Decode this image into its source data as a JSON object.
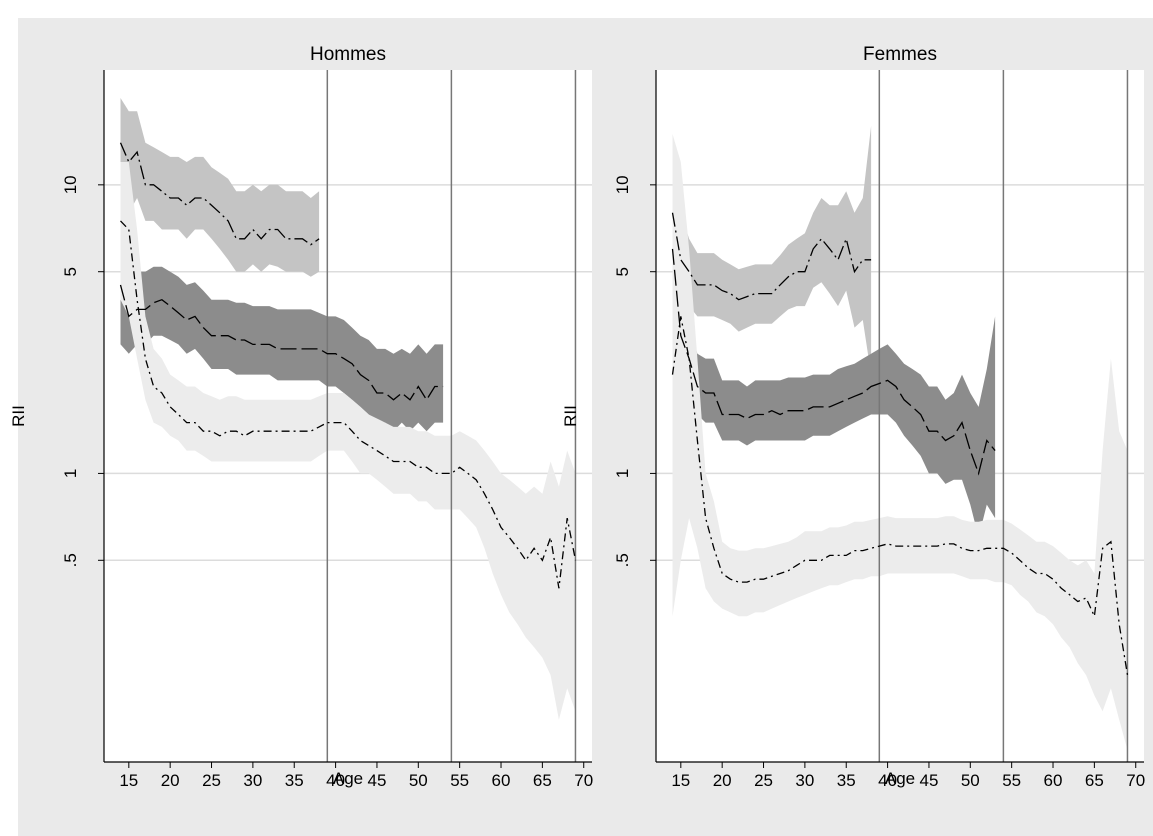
{
  "chart_data": [
    {
      "type": "line",
      "title": "Hommes",
      "xlabel": "Age",
      "ylabel": "RII",
      "xlim": [
        12,
        71
      ],
      "ylim": [
        0.1,
        25
      ],
      "log_y": true,
      "x_ticks": [
        15,
        20,
        25,
        30,
        35,
        40,
        45,
        50,
        55,
        60,
        65,
        70
      ],
      "x_tick_labels": [
        "15",
        "20",
        "25",
        "30",
        "35",
        "40",
        "45",
        "50",
        "55",
        "60",
        "65",
        "70"
      ],
      "y_ticks": [
        10,
        5,
        1,
        0.5
      ],
      "y_tick_labels": [
        "10",
        "5",
        "1",
        ".5"
      ],
      "grid": true,
      "vlines": [
        39,
        54,
        69
      ],
      "series": [
        {
          "band_color": "#c4c4c4",
          "line_style": "long-dash-dot",
          "x": [
            14,
            15,
            16,
            17,
            18,
            19,
            20,
            21,
            22,
            23,
            24,
            25,
            26,
            27,
            28,
            29,
            30,
            31,
            32,
            33,
            34,
            35,
            36,
            37,
            38
          ],
          "values": [
            14,
            12,
            13,
            10,
            10,
            9.5,
            9,
            9,
            8.5,
            9,
            9,
            8.5,
            8,
            7.5,
            6.5,
            6.5,
            7,
            6.5,
            7,
            7,
            6.5,
            6.5,
            6.5,
            6.2,
            6.5
          ],
          "lower": [
            10,
            8,
            9,
            7.5,
            7.5,
            7,
            7,
            7,
            6.5,
            7,
            7,
            6.5,
            6,
            5.5,
            5,
            5,
            5.3,
            5,
            5.3,
            5.2,
            5,
            5,
            5,
            4.8,
            5
          ],
          "upper": [
            20,
            18,
            18,
            14,
            13.5,
            13,
            12.5,
            12.5,
            12,
            12.5,
            12.5,
            11.5,
            11,
            10.5,
            9.5,
            9.5,
            10,
            9.5,
            10,
            10,
            9.5,
            9.5,
            9.5,
            9,
            9.5
          ]
        },
        {
          "band_color": "#8c8c8c",
          "line_style": "long-dash",
          "x": [
            14,
            15,
            16,
            17,
            18,
            19,
            20,
            21,
            22,
            23,
            24,
            25,
            26,
            27,
            28,
            29,
            30,
            31,
            32,
            33,
            34,
            35,
            36,
            37,
            38,
            39,
            40,
            41,
            42,
            43,
            44,
            45,
            46,
            47,
            48,
            49,
            50,
            51,
            52,
            53
          ],
          "values": [
            4.5,
            3.5,
            3.7,
            3.7,
            3.9,
            4,
            3.8,
            3.6,
            3.4,
            3.5,
            3.2,
            3,
            3,
            3,
            2.9,
            2.9,
            2.8,
            2.8,
            2.8,
            2.7,
            2.7,
            2.7,
            2.7,
            2.7,
            2.7,
            2.6,
            2.6,
            2.5,
            2.4,
            2.2,
            2.1,
            1.9,
            1.9,
            1.8,
            1.9,
            1.8,
            2,
            1.8,
            2,
            2
          ],
          "lower": [
            2.8,
            2.6,
            2.8,
            2.8,
            3,
            3,
            2.9,
            2.8,
            2.6,
            2.7,
            2.5,
            2.3,
            2.3,
            2.3,
            2.2,
            2.2,
            2.2,
            2.2,
            2.2,
            2.1,
            2.1,
            2.1,
            2.1,
            2.1,
            2.1,
            2,
            2,
            1.9,
            1.8,
            1.7,
            1.6,
            1.5,
            1.5,
            1.4,
            1.5,
            1.4,
            1.5,
            1.4,
            1.5,
            1.5
          ],
          "upper": [
            6,
            4.8,
            5,
            5,
            5.2,
            5.2,
            5,
            4.8,
            4.5,
            4.6,
            4.3,
            4,
            4,
            4,
            3.9,
            3.9,
            3.8,
            3.8,
            3.8,
            3.7,
            3.7,
            3.7,
            3.7,
            3.7,
            3.6,
            3.5,
            3.5,
            3.4,
            3.2,
            3,
            2.9,
            2.7,
            2.7,
            2.6,
            2.7,
            2.6,
            2.8,
            2.6,
            2.8,
            2.8
          ]
        },
        {
          "band_color": "#ececec",
          "line_style": "dash-dot",
          "x": [
            14,
            15,
            16,
            17,
            18,
            19,
            20,
            21,
            22,
            23,
            24,
            25,
            26,
            27,
            28,
            29,
            30,
            31,
            32,
            33,
            34,
            35,
            36,
            37,
            38,
            39,
            40,
            41,
            42,
            43,
            44,
            45,
            46,
            47,
            48,
            49,
            50,
            51,
            52,
            53,
            54,
            55,
            56,
            57,
            58,
            59,
            60,
            61,
            62,
            63,
            64,
            65,
            66,
            67,
            68,
            69
          ],
          "values": [
            7.5,
            7,
            4,
            2.5,
            2,
            1.9,
            1.7,
            1.6,
            1.5,
            1.5,
            1.4,
            1.4,
            1.35,
            1.4,
            1.4,
            1.35,
            1.4,
            1.4,
            1.4,
            1.4,
            1.4,
            1.4,
            1.4,
            1.4,
            1.45,
            1.5,
            1.5,
            1.5,
            1.4,
            1.3,
            1.25,
            1.2,
            1.15,
            1.1,
            1.1,
            1.1,
            1.05,
            1.05,
            1,
            1,
            1,
            1.05,
            1,
            0.95,
            0.85,
            0.75,
            0.65,
            0.6,
            0.55,
            0.5,
            0.55,
            0.5,
            0.6,
            0.4,
            0.7,
            0.5
          ],
          "lower": [
            4,
            3.5,
            2.5,
            1.8,
            1.5,
            1.45,
            1.35,
            1.3,
            1.2,
            1.2,
            1.15,
            1.1,
            1.1,
            1.1,
            1.1,
            1.1,
            1.1,
            1.1,
            1.1,
            1.1,
            1.1,
            1.1,
            1.1,
            1.1,
            1.15,
            1.2,
            1.2,
            1.2,
            1.1,
            1,
            1,
            0.95,
            0.9,
            0.85,
            0.85,
            0.85,
            0.8,
            0.8,
            0.75,
            0.75,
            0.75,
            0.75,
            0.7,
            0.65,
            0.55,
            0.45,
            0.38,
            0.33,
            0.3,
            0.27,
            0.25,
            0.23,
            0.2,
            0.14,
            0.18,
            0.15
          ],
          "upper": [
            12,
            12,
            7,
            3.5,
            2.7,
            2.5,
            2.2,
            2.1,
            2,
            2,
            1.9,
            1.85,
            1.8,
            1.85,
            1.85,
            1.8,
            1.8,
            1.8,
            1.8,
            1.8,
            1.8,
            1.8,
            1.8,
            1.8,
            1.85,
            1.9,
            1.9,
            1.9,
            1.8,
            1.7,
            1.6,
            1.55,
            1.5,
            1.45,
            1.45,
            1.45,
            1.4,
            1.4,
            1.35,
            1.35,
            1.35,
            1.4,
            1.35,
            1.3,
            1.2,
            1.1,
            1,
            0.95,
            0.9,
            0.85,
            0.9,
            0.85,
            1.1,
            0.9,
            1.2,
            1
          ]
        }
      ]
    },
    {
      "type": "line",
      "title": "Femmes",
      "xlabel": "Age",
      "ylabel": "RII",
      "xlim": [
        12,
        71
      ],
      "ylim": [
        0.1,
        25
      ],
      "log_y": true,
      "x_ticks": [
        15,
        20,
        25,
        30,
        35,
        40,
        45,
        50,
        55,
        60,
        65,
        70
      ],
      "x_tick_labels": [
        "15",
        "20",
        "25",
        "30",
        "35",
        "40",
        "45",
        "50",
        "55",
        "60",
        "65",
        "70"
      ],
      "y_ticks": [
        10,
        5,
        1,
        0.5
      ],
      "y_tick_labels": [
        "10",
        "5",
        "1",
        ".5"
      ],
      "grid": true,
      "vlines": [
        39,
        54,
        69
      ],
      "series": [
        {
          "band_color": "#c4c4c4",
          "line_style": "long-dash-dot",
          "x": [
            14,
            15,
            16,
            17,
            18,
            19,
            20,
            21,
            22,
            23,
            24,
            25,
            26,
            27,
            28,
            29,
            30,
            31,
            32,
            33,
            34,
            35,
            36,
            37,
            38
          ],
          "values": [
            8,
            5.5,
            5,
            4.5,
            4.5,
            4.5,
            4.3,
            4.2,
            4,
            4.1,
            4.2,
            4.2,
            4.2,
            4.5,
            4.8,
            5,
            5,
            6,
            6.5,
            6,
            5.5,
            6.5,
            5,
            5.5,
            5.5
          ],
          "lower": [
            5,
            4,
            3.8,
            3.5,
            3.5,
            3.5,
            3.4,
            3.3,
            3.1,
            3.2,
            3.3,
            3.3,
            3.3,
            3.5,
            3.7,
            3.8,
            3.8,
            4.4,
            4.6,
            4.2,
            3.8,
            4.3,
            3.2,
            3.4,
            2.2
          ],
          "upper": [
            12,
            8,
            6.5,
            5.8,
            5.8,
            5.8,
            5.5,
            5.3,
            5.1,
            5.2,
            5.3,
            5.3,
            5.3,
            5.7,
            6.2,
            6.5,
            6.8,
            8,
            9,
            8.5,
            8.5,
            9.5,
            8,
            9,
            16
          ]
        },
        {
          "band_color": "#8c8c8c",
          "line_style": "long-dash",
          "x": [
            14,
            15,
            16,
            17,
            18,
            19,
            20,
            21,
            22,
            23,
            24,
            25,
            26,
            27,
            28,
            29,
            30,
            31,
            32,
            33,
            34,
            35,
            36,
            37,
            38,
            39,
            40,
            41,
            42,
            43,
            44,
            45,
            46,
            47,
            48,
            49,
            50,
            51,
            52,
            53
          ],
          "values": [
            6,
            3,
            2.5,
            2,
            1.9,
            1.9,
            1.6,
            1.6,
            1.6,
            1.55,
            1.6,
            1.6,
            1.65,
            1.6,
            1.65,
            1.65,
            1.65,
            1.7,
            1.7,
            1.7,
            1.75,
            1.8,
            1.85,
            1.9,
            2,
            2.05,
            2.1,
            2,
            1.8,
            1.7,
            1.6,
            1.4,
            1.4,
            1.3,
            1.35,
            1.5,
            1.2,
            1,
            1.3,
            1.2
          ],
          "lower": [
            4,
            2.3,
            2,
            1.6,
            1.5,
            1.5,
            1.3,
            1.3,
            1.3,
            1.25,
            1.3,
            1.3,
            1.3,
            1.3,
            1.3,
            1.3,
            1.3,
            1.35,
            1.35,
            1.35,
            1.4,
            1.45,
            1.5,
            1.55,
            1.6,
            1.6,
            1.6,
            1.5,
            1.35,
            1.25,
            1.15,
            1,
            1,
            0.92,
            0.95,
            0.95,
            0.78,
            0.6,
            0.78,
            0.7
          ],
          "upper": [
            9,
            4,
            3.2,
            2.6,
            2.5,
            2.5,
            2.1,
            2.1,
            2.1,
            2,
            2.1,
            2.1,
            2.1,
            2.1,
            2.15,
            2.15,
            2.15,
            2.2,
            2.2,
            2.2,
            2.3,
            2.35,
            2.4,
            2.5,
            2.6,
            2.7,
            2.8,
            2.6,
            2.4,
            2.3,
            2.2,
            2,
            2,
            1.8,
            1.9,
            2.2,
            1.9,
            1.7,
            2.3,
            3.5
          ]
        },
        {
          "band_color": "#ececec",
          "line_style": "dash-dot",
          "x": [
            14,
            15,
            16,
            17,
            18,
            19,
            20,
            21,
            22,
            23,
            24,
            25,
            26,
            27,
            28,
            29,
            30,
            31,
            32,
            33,
            34,
            35,
            36,
            37,
            38,
            39,
            40,
            41,
            42,
            43,
            44,
            45,
            46,
            47,
            48,
            49,
            50,
            51,
            52,
            53,
            54,
            55,
            56,
            57,
            58,
            59,
            60,
            61,
            62,
            63,
            64,
            65,
            66,
            67,
            68,
            69
          ],
          "values": [
            2.2,
            3.5,
            2.5,
            1.3,
            0.7,
            0.55,
            0.45,
            0.43,
            0.42,
            0.42,
            0.43,
            0.43,
            0.44,
            0.45,
            0.46,
            0.48,
            0.5,
            0.5,
            0.5,
            0.52,
            0.52,
            0.52,
            0.54,
            0.54,
            0.55,
            0.56,
            0.57,
            0.56,
            0.56,
            0.56,
            0.56,
            0.56,
            0.56,
            0.57,
            0.57,
            0.55,
            0.54,
            0.54,
            0.55,
            0.55,
            0.55,
            0.53,
            0.5,
            0.47,
            0.45,
            0.45,
            0.43,
            0.4,
            0.38,
            0.36,
            0.37,
            0.32,
            0.55,
            0.58,
            0.3,
            0.2
          ],
          "lower": [
            0.32,
            0.5,
            0.7,
            0.55,
            0.4,
            0.36,
            0.34,
            0.33,
            0.32,
            0.32,
            0.33,
            0.33,
            0.34,
            0.35,
            0.36,
            0.37,
            0.38,
            0.39,
            0.4,
            0.41,
            0.41,
            0.42,
            0.43,
            0.43,
            0.44,
            0.44,
            0.45,
            0.45,
            0.45,
            0.45,
            0.45,
            0.45,
            0.45,
            0.45,
            0.45,
            0.44,
            0.43,
            0.43,
            0.43,
            0.42,
            0.42,
            0.41,
            0.38,
            0.36,
            0.33,
            0.32,
            0.3,
            0.27,
            0.25,
            0.22,
            0.2,
            0.17,
            0.15,
            0.18,
            0.14,
            0.11
          ],
          "upper": [
            15,
            12,
            6,
            2.5,
            1,
            0.8,
            0.58,
            0.55,
            0.54,
            0.54,
            0.55,
            0.55,
            0.56,
            0.57,
            0.58,
            0.6,
            0.63,
            0.63,
            0.63,
            0.65,
            0.65,
            0.66,
            0.68,
            0.68,
            0.69,
            0.7,
            0.71,
            0.7,
            0.7,
            0.7,
            0.7,
            0.7,
            0.7,
            0.71,
            0.71,
            0.69,
            0.68,
            0.68,
            0.69,
            0.69,
            0.69,
            0.67,
            0.64,
            0.61,
            0.58,
            0.58,
            0.56,
            0.53,
            0.5,
            0.48,
            0.5,
            0.45,
            1.2,
            2.5,
            1.4,
            1.2
          ]
        }
      ]
    }
  ]
}
